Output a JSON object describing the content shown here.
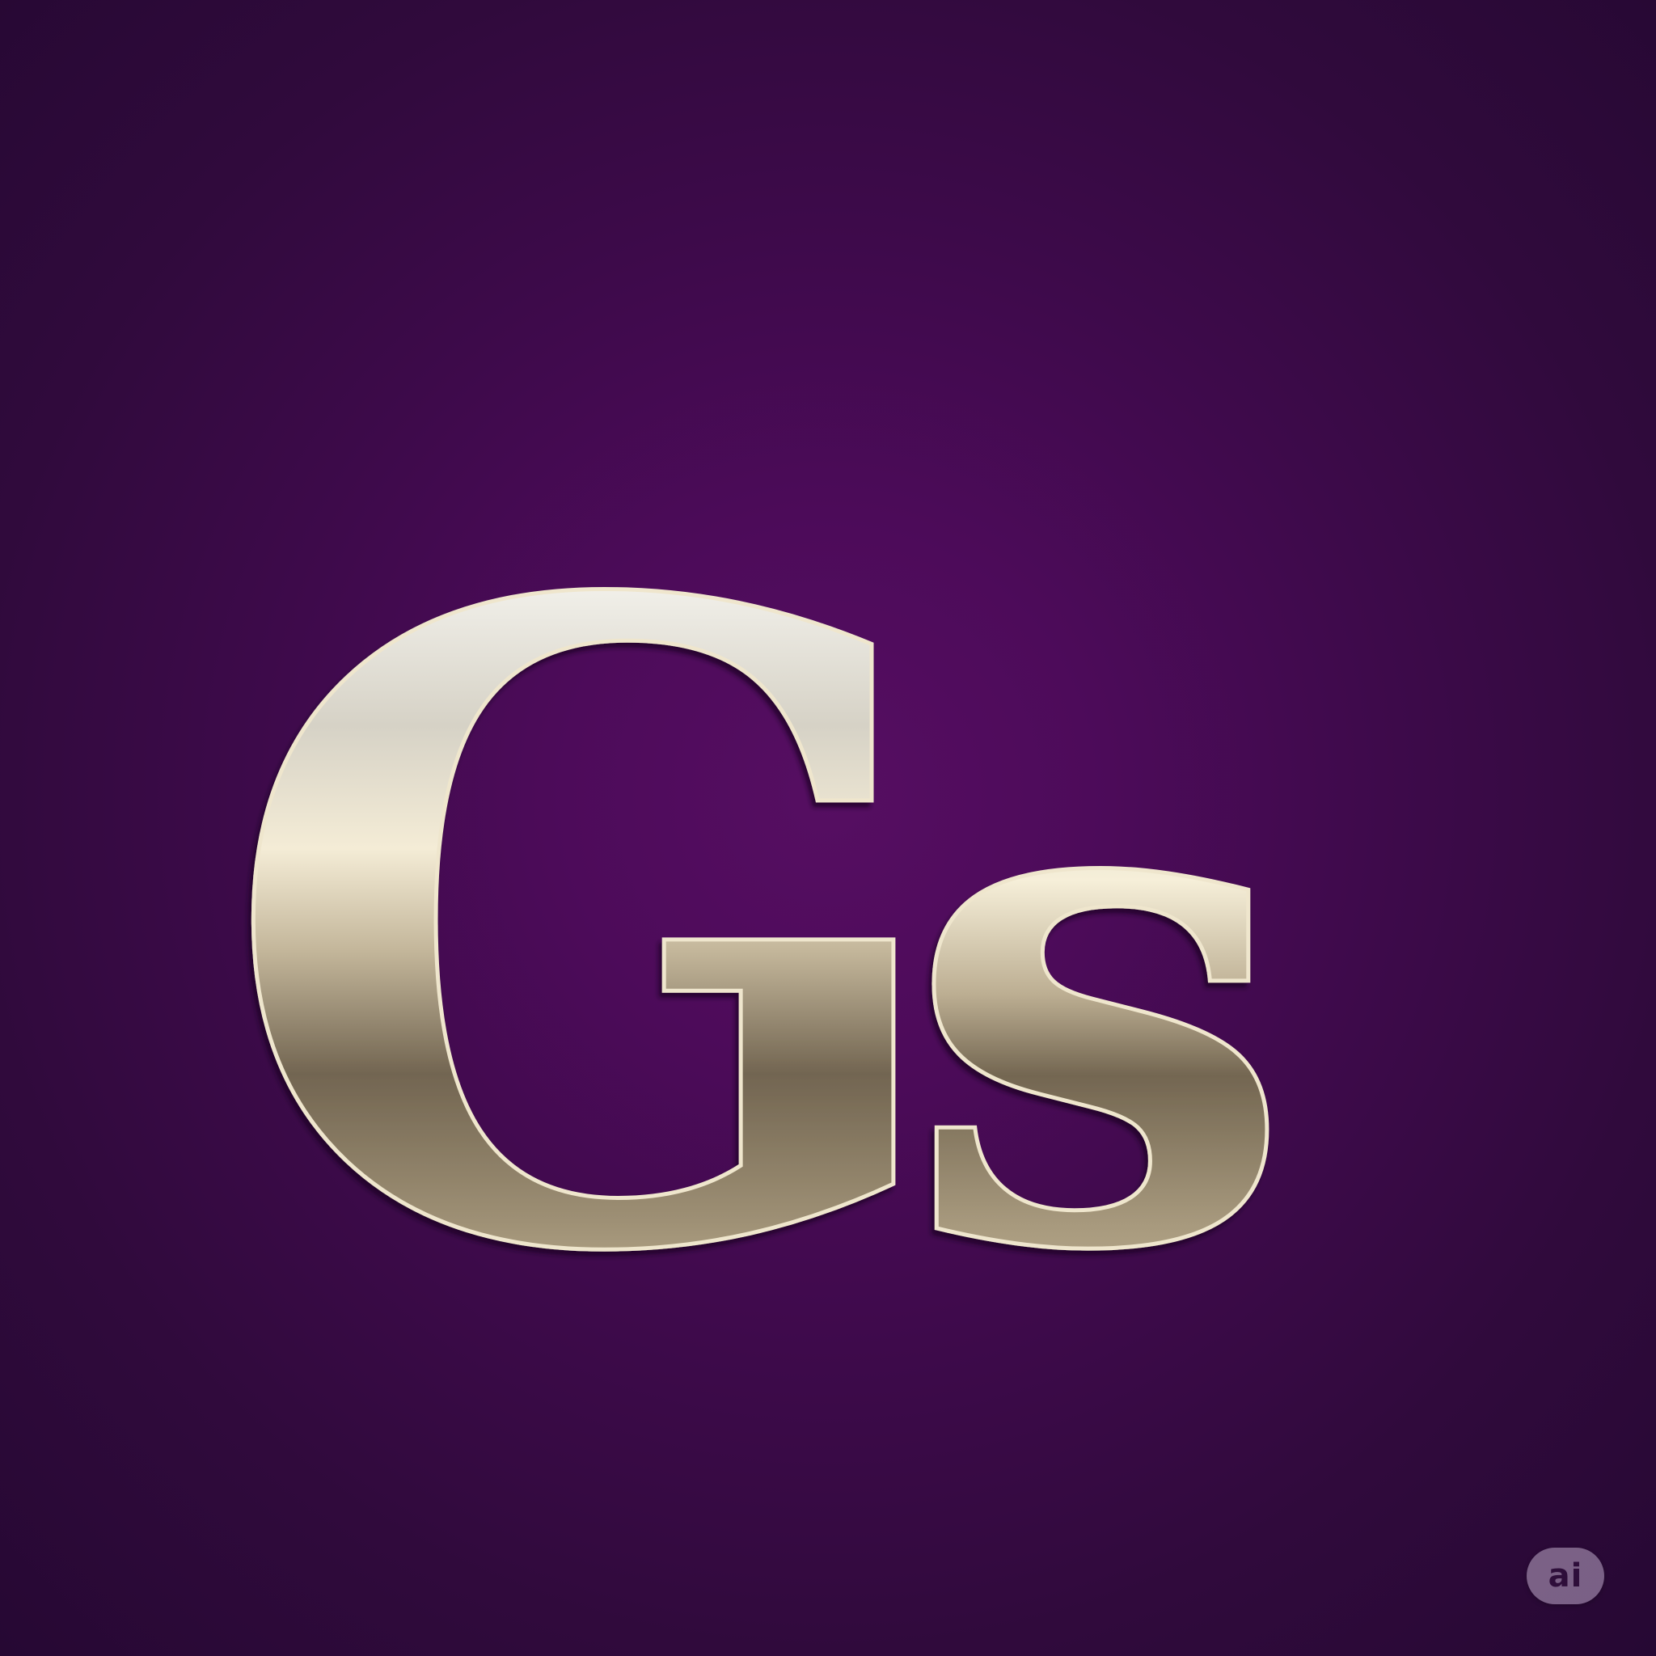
{
  "logo": {
    "text": "Gs",
    "letters": [
      "G",
      "s"
    ]
  },
  "badge": {
    "label": "ai"
  },
  "colors": {
    "background_center": "#560e62",
    "background_edge": "#260833",
    "metal_light": "#f6f3ea",
    "metal_cream": "#f1e7cc",
    "metal_dark": "#6f6350",
    "metal_tan": "#cdbd9b",
    "badge_fill": "#beaac8",
    "badge_text": "#2e0e3a"
  }
}
